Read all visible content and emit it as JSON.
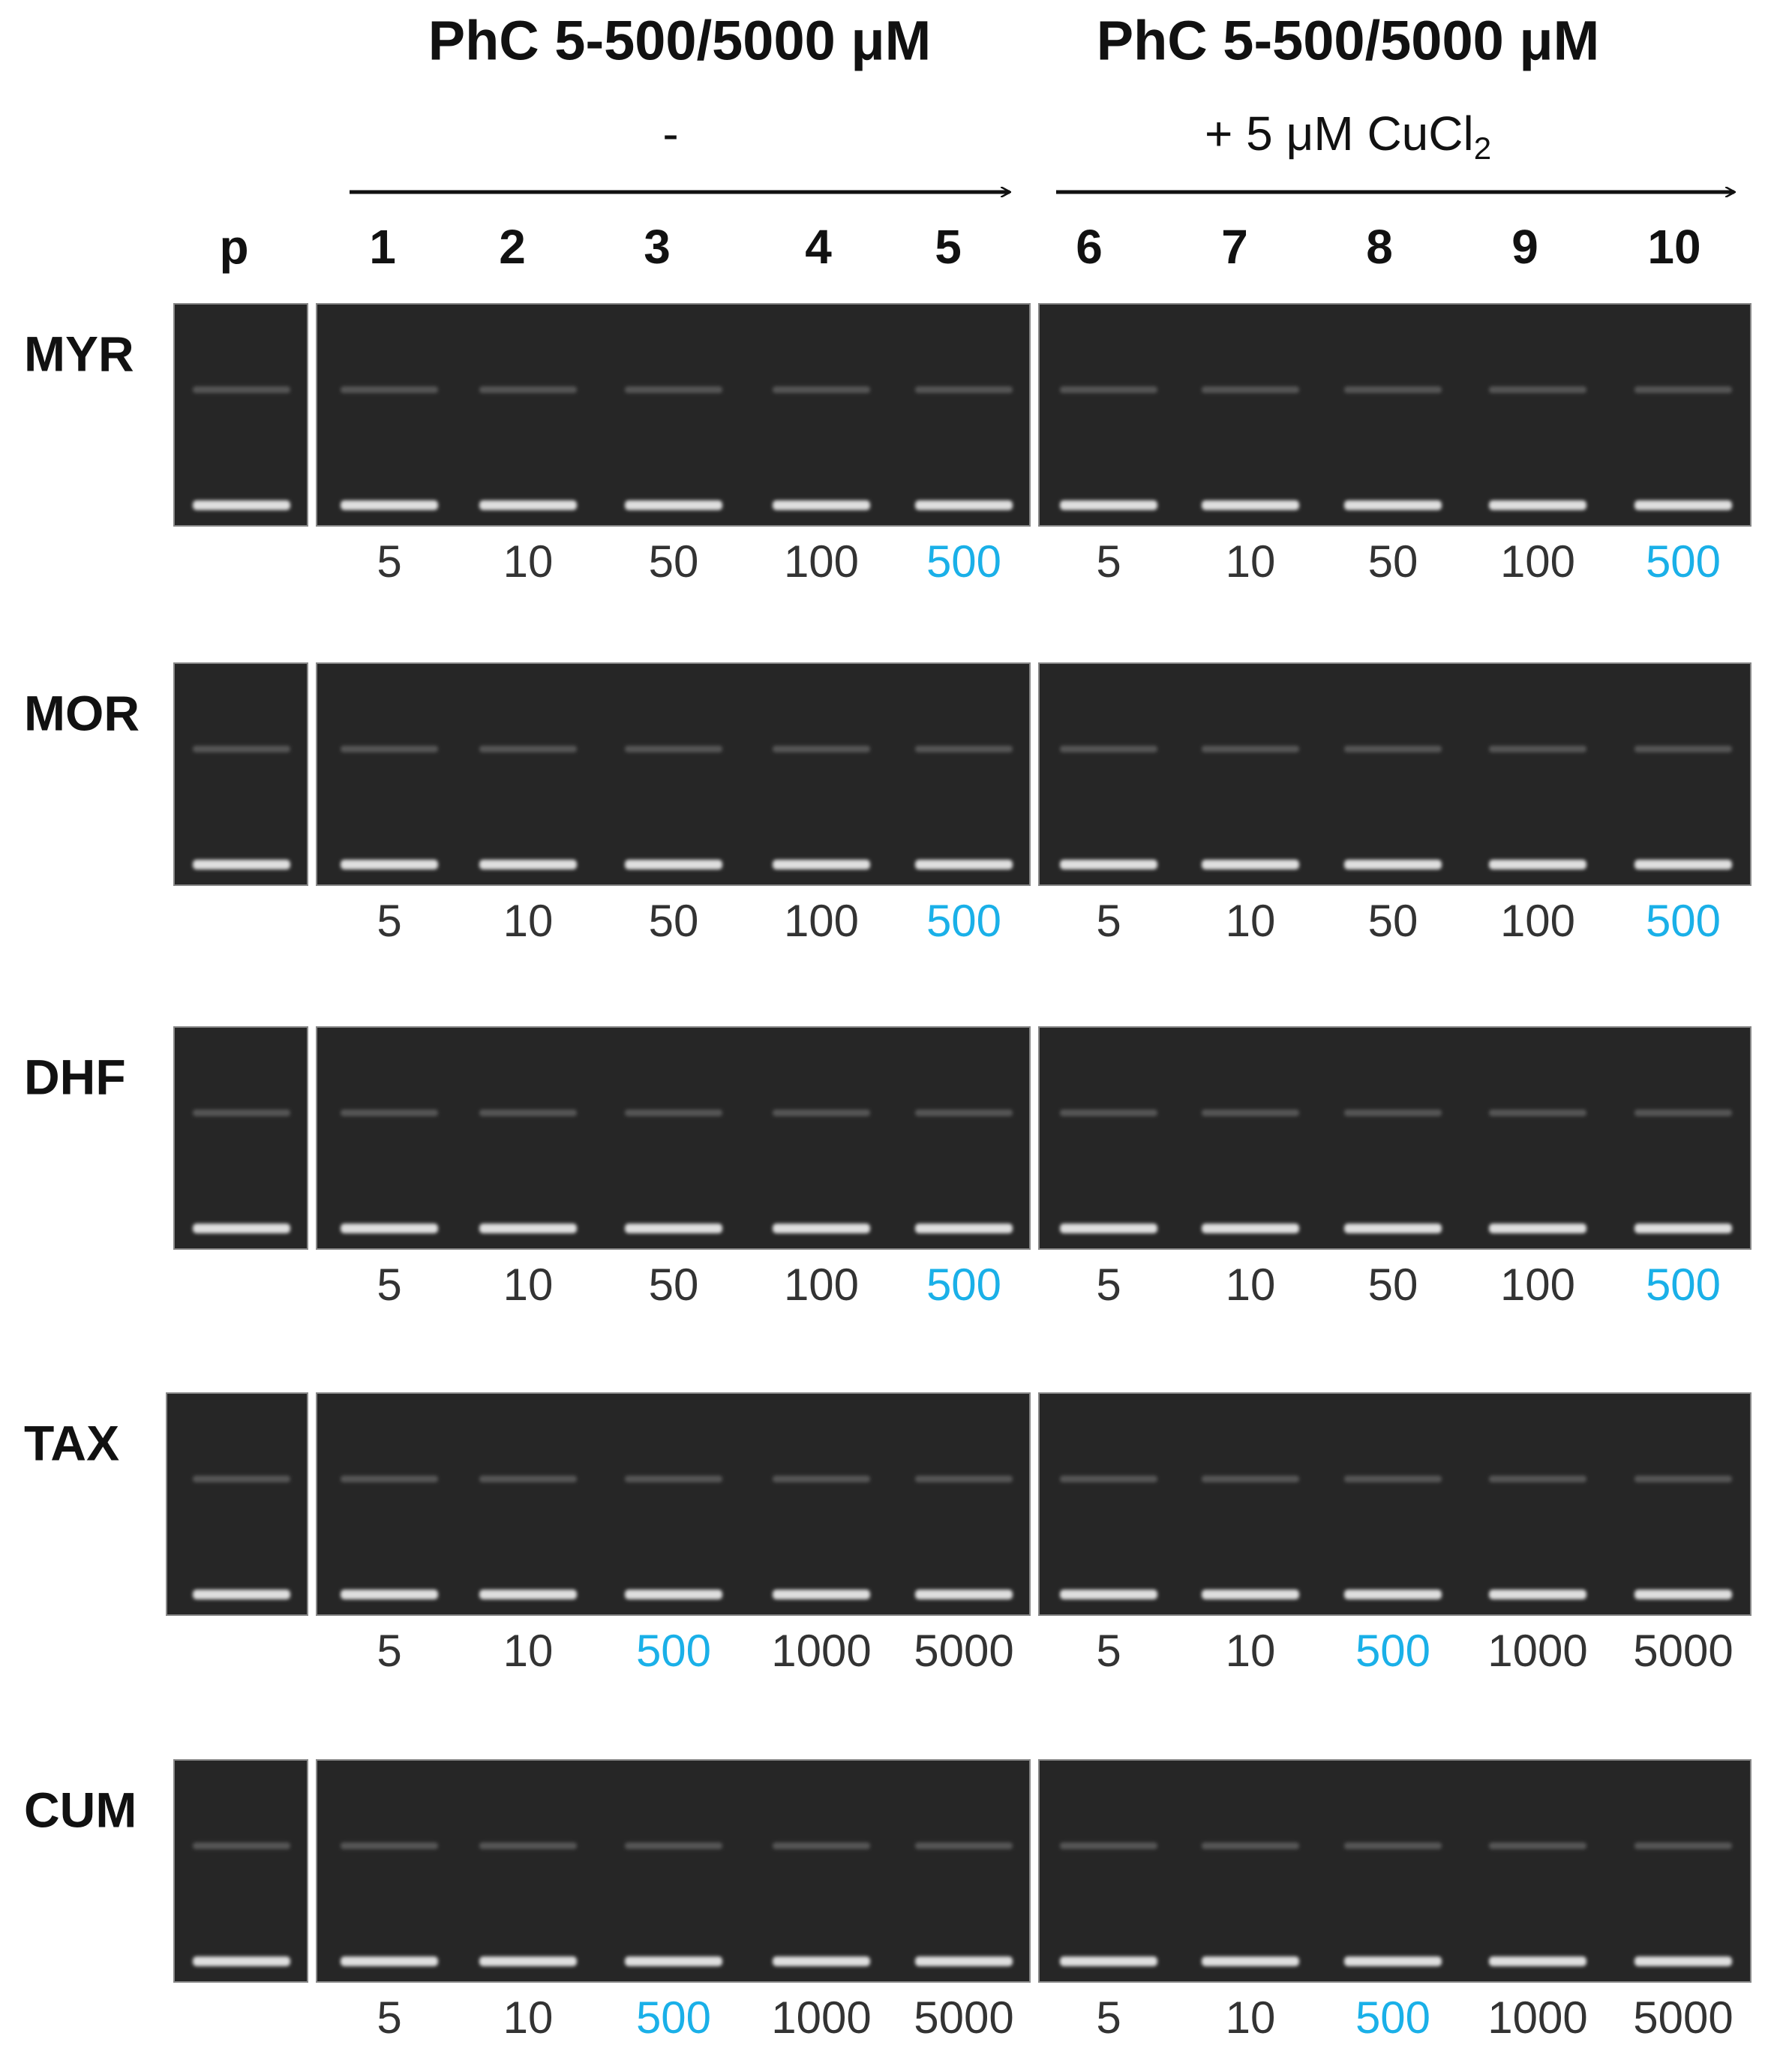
{
  "header": {
    "left_title": "PhC 5-500/5000 μM",
    "left_subtitle": "-",
    "right_title": "PhC 5-500/5000 μM",
    "right_subtitle": {
      "text": "+ 5 μM CuCl",
      "subscript": "2"
    }
  },
  "lanes": [
    "p",
    "1",
    "2",
    "3",
    "4",
    "5",
    "6",
    "7",
    "8",
    "9",
    "10"
  ],
  "rows": [
    {
      "label": "MYR",
      "concentrations": [
        {
          "text": "5",
          "color": "#333333"
        },
        {
          "text": "10",
          "color": "#333333"
        },
        {
          "text": "50",
          "color": "#333333"
        },
        {
          "text": "100",
          "color": "#333333"
        },
        {
          "text": "500",
          "color": "#1ab0e8"
        },
        {
          "text": "5",
          "color": "#333333"
        },
        {
          "text": "10",
          "color": "#333333"
        },
        {
          "text": "50",
          "color": "#333333"
        },
        {
          "text": "100",
          "color": "#333333"
        },
        {
          "text": "500",
          "color": "#1ab0e8"
        }
      ]
    },
    {
      "label": "MOR",
      "concentrations": [
        {
          "text": "5",
          "color": "#333333"
        },
        {
          "text": "10",
          "color": "#333333"
        },
        {
          "text": "50",
          "color": "#333333"
        },
        {
          "text": "100",
          "color": "#333333"
        },
        {
          "text": "500",
          "color": "#1ab0e8"
        },
        {
          "text": "5",
          "color": "#333333"
        },
        {
          "text": "10",
          "color": "#333333"
        },
        {
          "text": "50",
          "color": "#333333"
        },
        {
          "text": "100",
          "color": "#333333"
        },
        {
          "text": "500",
          "color": "#1ab0e8"
        }
      ]
    },
    {
      "label": "DHF",
      "concentrations": [
        {
          "text": "5",
          "color": "#333333"
        },
        {
          "text": "10",
          "color": "#333333"
        },
        {
          "text": "50",
          "color": "#333333"
        },
        {
          "text": "100",
          "color": "#333333"
        },
        {
          "text": "500",
          "color": "#1ab0e8"
        },
        {
          "text": "5",
          "color": "#333333"
        },
        {
          "text": "10",
          "color": "#333333"
        },
        {
          "text": "50",
          "color": "#333333"
        },
        {
          "text": "100",
          "color": "#333333"
        },
        {
          "text": "500",
          "color": "#1ab0e8"
        }
      ]
    },
    {
      "label": "TAX",
      "concentrations": [
        {
          "text": "5",
          "color": "#333333"
        },
        {
          "text": "10",
          "color": "#333333"
        },
        {
          "text": "500",
          "color": "#1ab0e8"
        },
        {
          "text": "1000",
          "color": "#333333"
        },
        {
          "text": "5000",
          "color": "#333333"
        },
        {
          "text": "5",
          "color": "#333333"
        },
        {
          "text": "10",
          "color": "#333333"
        },
        {
          "text": "500",
          "color": "#1ab0e8"
        },
        {
          "text": "1000",
          "color": "#333333"
        },
        {
          "text": "5000",
          "color": "#333333"
        }
      ]
    },
    {
      "label": "CUM",
      "concentrations": [
        {
          "text": "5",
          "color": "#333333"
        },
        {
          "text": "10",
          "color": "#333333"
        },
        {
          "text": "500",
          "color": "#1ab0e8"
        },
        {
          "text": "1000",
          "color": "#333333"
        },
        {
          "text": "5000",
          "color": "#333333"
        },
        {
          "text": "5",
          "color": "#333333"
        },
        {
          "text": "10",
          "color": "#333333"
        },
        {
          "text": "500",
          "color": "#1ab0e8"
        },
        {
          "text": "1000",
          "color": "#333333"
        },
        {
          "text": "5000",
          "color": "#333333"
        }
      ]
    }
  ]
}
